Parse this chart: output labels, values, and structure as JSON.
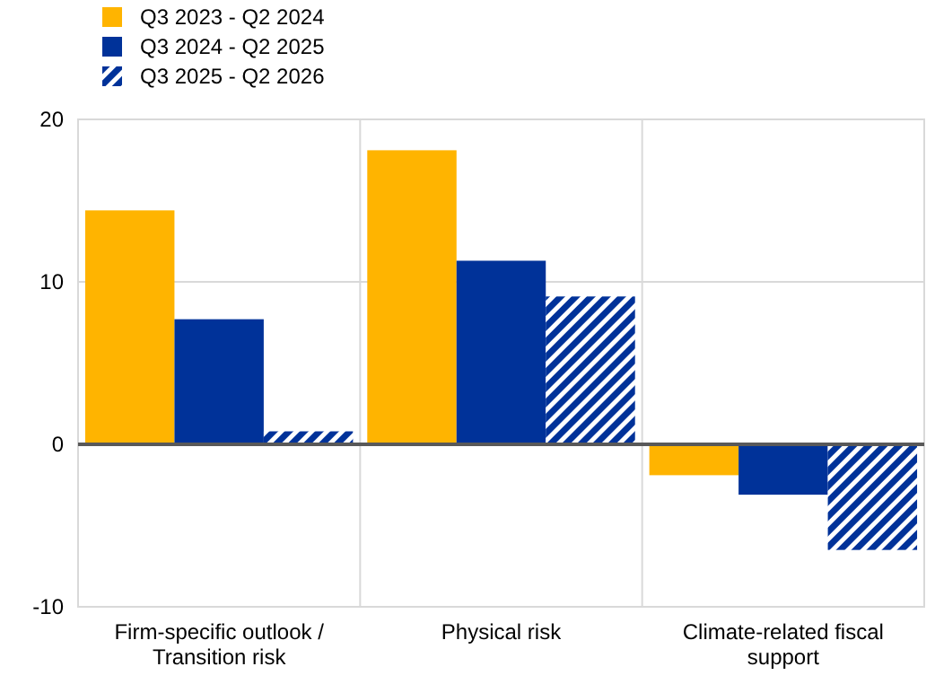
{
  "chart_data": {
    "type": "bar",
    "categories": [
      "Firm-specific outlook / Transition risk",
      "Physical risk",
      "Climate-related fiscal support"
    ],
    "series": [
      {
        "name": "Q3 2023 - Q2 2024",
        "color": "#ffb400",
        "values": [
          14.4,
          18.1,
          -1.9
        ]
      },
      {
        "name": "Q3 2024 - Q2 2025",
        "color": "#003299",
        "values": [
          7.7,
          11.3,
          -3.1
        ]
      },
      {
        "name": "Q3 2025 - Q2 2026",
        "color": "#003299",
        "values": [
          0.8,
          9.1,
          -6.5
        ]
      }
    ],
    "ylim": [
      -10,
      20
    ],
    "yticks": [
      -10,
      0,
      10,
      20
    ],
    "grid": true,
    "legend": "top left"
  }
}
